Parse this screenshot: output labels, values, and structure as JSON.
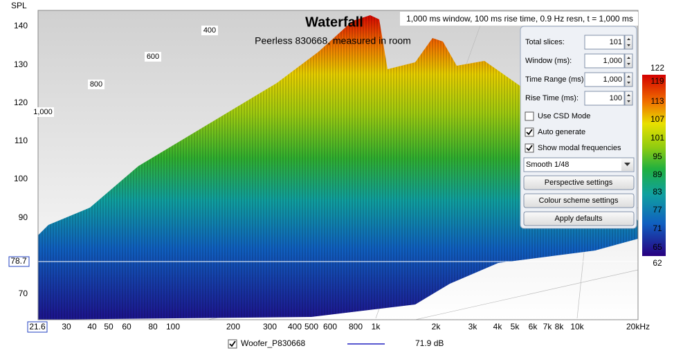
{
  "axis": {
    "y_label": "SPL",
    "y_ticks": [
      "140",
      "130",
      "120",
      "110",
      "100",
      "90",
      "70"
    ],
    "y_cursor": "78.7",
    "x_cursor": "21.6",
    "x_ticks": [
      "30",
      "40",
      "50",
      "60",
      "80",
      "100",
      "200",
      "300",
      "400",
      "500",
      "600",
      "800",
      "1k",
      "2k",
      "3k",
      "4k",
      "5k",
      "6k",
      "7k",
      "8k",
      "10k",
      "20kHz"
    ],
    "time_ticks": [
      "400",
      "600",
      "800",
      "1,000"
    ]
  },
  "plot": {
    "title": "Waterfall",
    "subtitle": "Peerless 830668, measured in room",
    "info": "1,000 ms window, 100 ms rise time,  0.9 Hz resn, t = 1,000 ms"
  },
  "panel": {
    "fields": [
      {
        "label": "Total slices:",
        "value": "101"
      },
      {
        "label": "Window (ms):",
        "value": "1,000"
      },
      {
        "label": "Time Range (ms):",
        "value": "1,000"
      },
      {
        "label": "Rise Time (ms):",
        "value": "100"
      }
    ],
    "checkboxes": [
      {
        "label": "Use CSD Mode",
        "checked": false
      },
      {
        "label": "Auto generate",
        "checked": true
      },
      {
        "label": "Show modal frequencies",
        "checked": true
      }
    ],
    "dropdown": "Smooth 1/48",
    "buttons": [
      "Perspective settings",
      "Colour scheme settings",
      "Apply defaults"
    ]
  },
  "color_scale": {
    "labels": [
      "122",
      "119",
      "113",
      "107",
      "101",
      "95",
      "89",
      "83",
      "77",
      "71",
      "65",
      "62"
    ]
  },
  "legend": {
    "name": "Woofer_P830668",
    "value": "71.9 dB",
    "checked": true
  }
}
